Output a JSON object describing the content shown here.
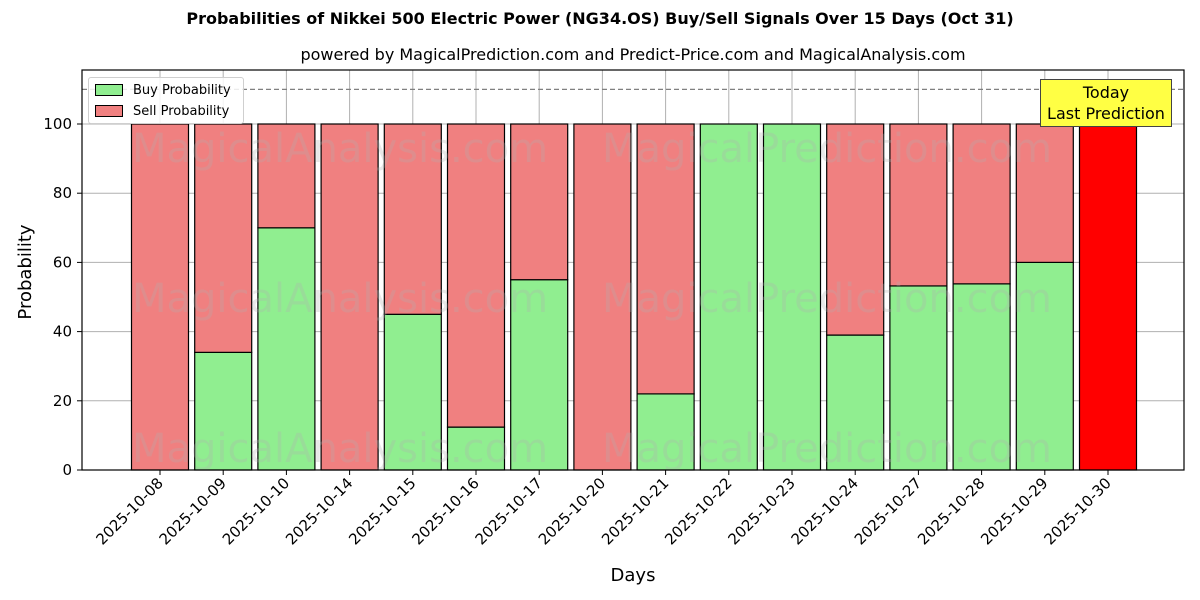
{
  "chart_data": {
    "type": "bar",
    "stacked": true,
    "title": "Probabilities of Nikkei 500 Electric Power (NG34.OS) Buy/Sell Signals Over 15 Days (Oct 31)",
    "subtitle": "powered by MagicalPrediction.com and Predict-Price.com and MagicalAnalysis.com",
    "xlabel": "Days",
    "ylabel": "Probability",
    "ylim": [
      0,
      115
    ],
    "yticks": [
      0,
      20,
      40,
      60,
      80,
      100
    ],
    "grid": true,
    "legend_position": "upper left",
    "reference_line": {
      "y": 110,
      "style": "dashed",
      "color": "#808080"
    },
    "categories": [
      "2025-10-08",
      "2025-10-09",
      "2025-10-10",
      "2025-10-14",
      "2025-10-15",
      "2025-10-16",
      "2025-10-17",
      "2025-10-20",
      "2025-10-21",
      "2025-10-22",
      "2025-10-23",
      "2025-10-24",
      "2025-10-27",
      "2025-10-28",
      "2025-10-29",
      "2025-10-30"
    ],
    "series": [
      {
        "name": "Buy Probability",
        "color": "#90ee90",
        "values": [
          0,
          34,
          70,
          0,
          45,
          12.4,
          55,
          0,
          22,
          100,
          100,
          39,
          53.2,
          53.8,
          60,
          0
        ]
      },
      {
        "name": "Sell Probability",
        "color": "#f08080",
        "values": [
          100,
          66,
          30,
          100,
          55,
          87.6,
          45,
          100,
          78,
          0,
          0,
          61,
          46.8,
          46.2,
          40,
          100
        ]
      }
    ],
    "highlight": {
      "index": 15,
      "color": "#ff0000",
      "label": "Today\nLast Prediction"
    },
    "annotation": {
      "line1": "Today",
      "line2": "Last Prediction",
      "background": "#ffff44"
    },
    "watermarks": [
      "MagicalAnalysis.com",
      "MagicalPrediction.com"
    ]
  },
  "legend": {
    "buy": "Buy Probability",
    "sell": "Sell Probability"
  }
}
